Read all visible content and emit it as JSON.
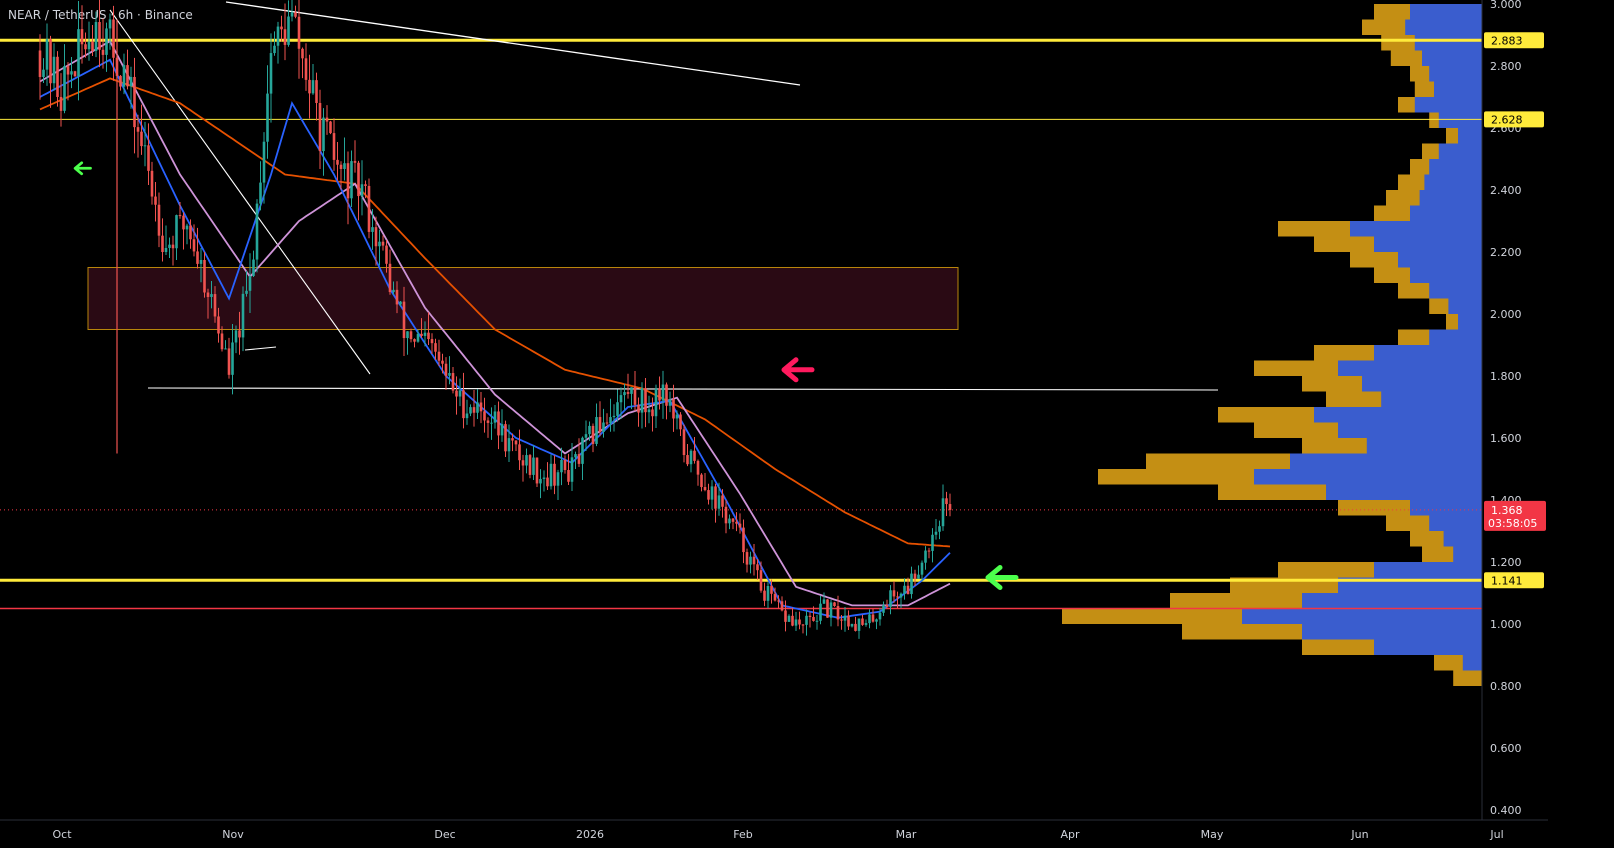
{
  "header": {
    "symbol": "NEAR / TetherUS",
    "interval": "6h",
    "exchange": "Binance",
    "sep": "·"
  },
  "colors": {
    "background": "#000000",
    "candle_up": "#26a69a",
    "candle_down": "#ef5350",
    "level_major": "#ffeb3b",
    "level_red": "#f23645",
    "ema_blue": "#2962ff",
    "ema_pink": "#ce93d8",
    "ema_orange": "#e65100",
    "volume_profile_gold": "#e6a817",
    "volume_profile_blue": "#2255ee",
    "arrow_red": "#ff1a5e",
    "arrow_green": "#4cff4c",
    "zone_fill": "#2a0a14",
    "zone_border": "#b8860b",
    "current_price": "#f23645",
    "trendline": "#ffffff"
  },
  "chart_data": {
    "type": "candlestick",
    "symbol": "NEAR / TetherUS",
    "interval": "6h",
    "exchange": "Binance",
    "y_axis": {
      "min": 0.4,
      "max": 3.0,
      "ticks": [
        "3.000",
        "2.800",
        "2.600",
        "2.400",
        "2.200",
        "2.000",
        "1.800",
        "1.600",
        "1.400",
        "1.200",
        "1.000",
        "0.800",
        "0.600",
        "0.400"
      ]
    },
    "x_axis": {
      "labels": [
        "Oct",
        "Nov",
        "Dec",
        "2026",
        "Feb",
        "Mar",
        "Apr",
        "May",
        "Jun",
        "Jul"
      ]
    },
    "price_waypoints": [
      {
        "t": 0,
        "p": 2.85
      },
      {
        "t": 3,
        "p": 2.72
      },
      {
        "t": 8,
        "p": 2.95
      },
      {
        "t": 12,
        "p": 2.78
      },
      {
        "t": 15,
        "p": 2.5
      },
      {
        "t": 18,
        "p": 2.22
      },
      {
        "t": 21,
        "p": 2.3
      },
      {
        "t": 24,
        "p": 2.08
      },
      {
        "t": 27,
        "p": 1.82
      },
      {
        "t": 30,
        "p": 2.1
      },
      {
        "t": 33,
        "p": 2.85
      },
      {
        "t": 36,
        "p": 2.95
      },
      {
        "t": 40,
        "p": 2.6
      },
      {
        "t": 43,
        "p": 2.45
      },
      {
        "t": 46,
        "p": 2.4
      },
      {
        "t": 49,
        "p": 2.18
      },
      {
        "t": 52,
        "p": 1.95
      },
      {
        "t": 56,
        "p": 1.88
      },
      {
        "t": 60,
        "p": 1.72
      },
      {
        "t": 64,
        "p": 1.68
      },
      {
        "t": 68,
        "p": 1.55
      },
      {
        "t": 72,
        "p": 1.48
      },
      {
        "t": 76,
        "p": 1.5
      },
      {
        "t": 80,
        "p": 1.65
      },
      {
        "t": 84,
        "p": 1.75
      },
      {
        "t": 87,
        "p": 1.7
      },
      {
        "t": 89,
        "p": 1.77
      },
      {
        "t": 92,
        "p": 1.56
      },
      {
        "t": 96,
        "p": 1.42
      },
      {
        "t": 100,
        "p": 1.28
      },
      {
        "t": 103,
        "p": 1.12
      },
      {
        "t": 106,
        "p": 1.03
      },
      {
        "t": 109,
        "p": 0.99
      },
      {
        "t": 112,
        "p": 1.05
      },
      {
        "t": 115,
        "p": 1.02
      },
      {
        "t": 118,
        "p": 0.99
      },
      {
        "t": 121,
        "p": 1.08
      },
      {
        "t": 124,
        "p": 1.12
      },
      {
        "t": 127,
        "p": 1.26
      },
      {
        "t": 129,
        "p": 1.38
      },
      {
        "t": 130,
        "p": 1.368
      }
    ],
    "ema_fast_waypoints": [
      {
        "t": 0,
        "p": 2.7
      },
      {
        "t": 10,
        "p": 2.82
      },
      {
        "t": 20,
        "p": 2.35
      },
      {
        "t": 27,
        "p": 2.05
      },
      {
        "t": 33,
        "p": 2.45
      },
      {
        "t": 36,
        "p": 2.68
      },
      {
        "t": 42,
        "p": 2.45
      },
      {
        "t": 50,
        "p": 2.08
      },
      {
        "t": 58,
        "p": 1.8
      },
      {
        "t": 68,
        "p": 1.6
      },
      {
        "t": 76,
        "p": 1.52
      },
      {
        "t": 84,
        "p": 1.7
      },
      {
        "t": 90,
        "p": 1.72
      },
      {
        "t": 98,
        "p": 1.4
      },
      {
        "t": 106,
        "p": 1.06
      },
      {
        "t": 114,
        "p": 1.02
      },
      {
        "t": 120,
        "p": 1.04
      },
      {
        "t": 126,
        "p": 1.14
      },
      {
        "t": 130,
        "p": 1.23
      }
    ],
    "ema_mid_waypoints": [
      {
        "t": 0,
        "p": 2.75
      },
      {
        "t": 10,
        "p": 2.88
      },
      {
        "t": 20,
        "p": 2.45
      },
      {
        "t": 30,
        "p": 2.12
      },
      {
        "t": 37,
        "p": 2.3
      },
      {
        "t": 45,
        "p": 2.42
      },
      {
        "t": 55,
        "p": 2.02
      },
      {
        "t": 65,
        "p": 1.74
      },
      {
        "t": 75,
        "p": 1.55
      },
      {
        "t": 84,
        "p": 1.68
      },
      {
        "t": 91,
        "p": 1.73
      },
      {
        "t": 100,
        "p": 1.42
      },
      {
        "t": 108,
        "p": 1.12
      },
      {
        "t": 116,
        "p": 1.06
      },
      {
        "t": 124,
        "p": 1.06
      },
      {
        "t": 130,
        "p": 1.13
      }
    ],
    "ema_slow_waypoints": [
      {
        "t": 0,
        "p": 2.66
      },
      {
        "t": 10,
        "p": 2.76
      },
      {
        "t": 20,
        "p": 2.68
      },
      {
        "t": 35,
        "p": 2.45
      },
      {
        "t": 45,
        "p": 2.42
      },
      {
        "t": 55,
        "p": 2.18
      },
      {
        "t": 65,
        "p": 1.95
      },
      {
        "t": 75,
        "p": 1.82
      },
      {
        "t": 86,
        "p": 1.76
      },
      {
        "t": 95,
        "p": 1.66
      },
      {
        "t": 105,
        "p": 1.5
      },
      {
        "t": 115,
        "p": 1.36
      },
      {
        "t": 124,
        "p": 1.26
      },
      {
        "t": 130,
        "p": 1.25
      }
    ],
    "horizontal_levels": [
      {
        "price": 2.883,
        "label": "2.883",
        "style": "major"
      },
      {
        "price": 2.628,
        "label": "2.628",
        "style": "minor"
      },
      {
        "price": 1.141,
        "label": "1.141",
        "style": "major"
      },
      {
        "price": 1.05,
        "label": "",
        "style": "red"
      }
    ],
    "current_price": {
      "value": "1.368",
      "countdown": "03:58:05"
    },
    "zone": {
      "price_top": 2.15,
      "price_bottom": 1.95
    },
    "annotations": [
      {
        "type": "arrow",
        "color": "red",
        "direction": "left",
        "price": 1.82
      },
      {
        "type": "arrow",
        "color": "green",
        "direction": "left",
        "price": 1.15
      },
      {
        "type": "arrow",
        "color": "green",
        "direction": "left",
        "price": 2.47
      }
    ],
    "volume_profile": [
      {
        "price": 3.0,
        "gold": 0.45,
        "blue": 0.3
      },
      {
        "price": 2.95,
        "gold": 0.5,
        "blue": 0.32
      },
      {
        "price": 2.9,
        "gold": 0.42,
        "blue": 0.28
      },
      {
        "price": 2.85,
        "gold": 0.38,
        "blue": 0.25
      },
      {
        "price": 2.8,
        "gold": 0.3,
        "blue": 0.22
      },
      {
        "price": 2.75,
        "gold": 0.28,
        "blue": 0.2
      },
      {
        "price": 2.7,
        "gold": 0.35,
        "blue": 0.28
      },
      {
        "price": 2.65,
        "gold": 0.22,
        "blue": 0.18
      },
      {
        "price": 2.6,
        "gold": 0.15,
        "blue": 0.1
      },
      {
        "price": 2.55,
        "gold": 0.25,
        "blue": 0.18
      },
      {
        "price": 2.5,
        "gold": 0.3,
        "blue": 0.22
      },
      {
        "price": 2.45,
        "gold": 0.35,
        "blue": 0.24
      },
      {
        "price": 2.4,
        "gold": 0.4,
        "blue": 0.26
      },
      {
        "price": 2.35,
        "gold": 0.45,
        "blue": 0.3
      },
      {
        "price": 2.3,
        "gold": 0.85,
        "blue": 0.55
      },
      {
        "price": 2.25,
        "gold": 0.7,
        "blue": 0.45
      },
      {
        "price": 2.2,
        "gold": 0.55,
        "blue": 0.35
      },
      {
        "price": 2.15,
        "gold": 0.45,
        "blue": 0.3
      },
      {
        "price": 2.1,
        "gold": 0.35,
        "blue": 0.22
      },
      {
        "price": 2.05,
        "gold": 0.22,
        "blue": 0.14
      },
      {
        "price": 2.0,
        "gold": 0.15,
        "blue": 0.1
      },
      {
        "price": 1.95,
        "gold": 0.35,
        "blue": 0.22
      },
      {
        "price": 1.9,
        "gold": 0.7,
        "blue": 0.45
      },
      {
        "price": 1.85,
        "gold": 0.95,
        "blue": 0.6
      },
      {
        "price": 1.8,
        "gold": 0.75,
        "blue": 0.5
      },
      {
        "price": 1.75,
        "gold": 0.65,
        "blue": 0.42
      },
      {
        "price": 1.7,
        "gold": 1.1,
        "blue": 0.7
      },
      {
        "price": 1.65,
        "gold": 0.95,
        "blue": 0.6
      },
      {
        "price": 1.6,
        "gold": 0.75,
        "blue": 0.48
      },
      {
        "price": 1.55,
        "gold": 1.4,
        "blue": 0.8
      },
      {
        "price": 1.5,
        "gold": 1.6,
        "blue": 0.95
      },
      {
        "price": 1.45,
        "gold": 1.1,
        "blue": 0.65
      },
      {
        "price": 1.4,
        "gold": 0.6,
        "blue": 0.3
      },
      {
        "price": 1.35,
        "gold": 0.4,
        "blue": 0.22
      },
      {
        "price": 1.3,
        "gold": 0.3,
        "blue": 0.16
      },
      {
        "price": 1.25,
        "gold": 0.25,
        "blue": 0.12
      },
      {
        "price": 1.2,
        "gold": 0.85,
        "blue": 0.45
      },
      {
        "price": 1.15,
        "gold": 1.05,
        "blue": 0.6
      },
      {
        "price": 1.1,
        "gold": 1.3,
        "blue": 0.75
      },
      {
        "price": 1.05,
        "gold": 1.75,
        "blue": 1.0
      },
      {
        "price": 1.0,
        "gold": 1.25,
        "blue": 0.75
      },
      {
        "price": 0.95,
        "gold": 0.75,
        "blue": 0.45
      },
      {
        "price": 0.9,
        "gold": 0.2,
        "blue": 0.08
      },
      {
        "price": 0.85,
        "gold": 0.12,
        "blue": 0.0
      }
    ]
  }
}
